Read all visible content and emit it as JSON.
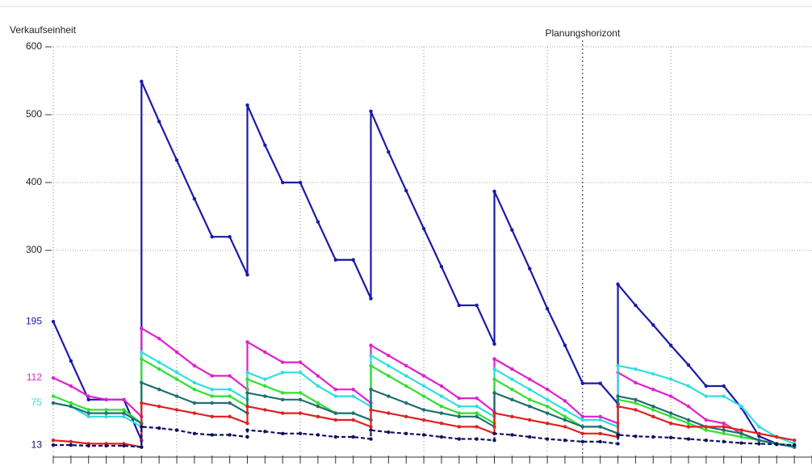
{
  "chart_data": {
    "type": "line",
    "y_label": "Verkaufseinheit",
    "annotation": {
      "text": "Planungshorizont",
      "x": 30
    },
    "x": [
      0,
      1,
      2,
      3,
      4,
      5,
      5,
      6,
      7,
      8,
      9,
      10,
      11,
      11,
      12,
      13,
      14,
      15,
      16,
      17,
      18,
      18,
      19,
      20,
      21,
      22,
      23,
      24,
      25,
      25,
      26,
      27,
      28,
      29,
      30,
      31,
      32,
      32,
      33,
      34,
      35,
      36,
      37,
      38,
      39,
      40,
      41,
      42
    ],
    "xlim": [
      0,
      43
    ],
    "x_gridlines": [
      0,
      7,
      14,
      21,
      28,
      35
    ],
    "ylim": [
      0,
      600
    ],
    "yticks": [
      300,
      400,
      500,
      600
    ],
    "grid": true,
    "series": [
      {
        "color": "#1a1aa8",
        "start_label": true,
        "dash": false,
        "values": [
          195,
          137,
          80,
          80,
          80,
          20,
          549,
          490,
          433,
          376,
          320,
          320,
          264,
          514,
          455,
          400,
          400,
          342,
          286,
          286,
          229,
          505,
          445,
          388,
          332,
          276,
          219,
          219,
          162,
          387,
          330,
          273,
          214,
          160,
          104,
          104,
          74,
          250,
          219,
          190,
          160,
          131,
          100,
          100,
          68,
          26,
          15,
          10
        ]
      },
      {
        "color": "#e020d0",
        "start_label": true,
        "dash": false,
        "values": [
          112,
          100,
          85,
          80,
          80,
          55,
          185,
          170,
          150,
          130,
          115,
          115,
          95,
          165,
          150,
          135,
          135,
          115,
          95,
          95,
          75,
          160,
          145,
          130,
          115,
          100,
          82,
          82,
          62,
          140,
          125,
          110,
          95,
          78,
          55,
          55,
          45,
          120,
          105,
          95,
          85,
          70,
          50,
          45,
          30,
          20,
          15,
          12
        ]
      },
      {
        "color": "#30dede",
        "start_label": true,
        "dash": false,
        "values": [
          75,
          70,
          55,
          55,
          55,
          40,
          150,
          135,
          120,
          105,
          95,
          95,
          80,
          120,
          110,
          120,
          120,
          100,
          85,
          85,
          70,
          145,
          130,
          115,
          100,
          85,
          70,
          70,
          55,
          125,
          110,
          95,
          80,
          65,
          50,
          50,
          40,
          130,
          125,
          118,
          110,
          100,
          85,
          85,
          70,
          40,
          25,
          15
        ]
      },
      {
        "color": "#30e030",
        "start_label": false,
        "dash": false,
        "values": [
          85,
          75,
          65,
          65,
          65,
          45,
          140,
          125,
          110,
          95,
          85,
          85,
          70,
          110,
          100,
          90,
          90,
          75,
          60,
          60,
          50,
          130,
          115,
          100,
          85,
          70,
          60,
          60,
          45,
          110,
          95,
          80,
          70,
          55,
          40,
          40,
          30,
          80,
          75,
          65,
          55,
          45,
          35,
          30,
          25,
          20,
          15,
          12
        ]
      },
      {
        "color": "#207070",
        "start_label": false,
        "dash": false,
        "values": [
          75,
          70,
          60,
          60,
          60,
          45,
          105,
          95,
          85,
          75,
          75,
          75,
          60,
          90,
          85,
          80,
          80,
          70,
          60,
          60,
          50,
          95,
          85,
          75,
          65,
          60,
          55,
          55,
          40,
          90,
          80,
          70,
          60,
          50,
          40,
          40,
          30,
          85,
          80,
          70,
          60,
          50,
          40,
          35,
          30,
          20,
          15,
          10
        ]
      },
      {
        "color": "#e02020",
        "start_label": false,
        "dash": false,
        "values": [
          20,
          18,
          15,
          15,
          15,
          10,
          75,
          70,
          65,
          60,
          55,
          55,
          45,
          70,
          65,
          60,
          60,
          55,
          50,
          50,
          40,
          65,
          60,
          55,
          50,
          45,
          40,
          40,
          30,
          60,
          55,
          50,
          45,
          40,
          30,
          30,
          25,
          70,
          65,
          55,
          45,
          40,
          40,
          40,
          35,
          30,
          25,
          20
        ]
      },
      {
        "color": "#101060",
        "start_label": true,
        "dash": true,
        "values": [
          13,
          13,
          12,
          12,
          12,
          10,
          40,
          38,
          35,
          30,
          28,
          28,
          25,
          35,
          33,
          30,
          30,
          28,
          25,
          25,
          22,
          35,
          32,
          30,
          28,
          25,
          22,
          22,
          20,
          30,
          28,
          25,
          22,
          20,
          18,
          18,
          15,
          28,
          26,
          25,
          24,
          22,
          20,
          18,
          16,
          15,
          14,
          13
        ]
      }
    ]
  }
}
